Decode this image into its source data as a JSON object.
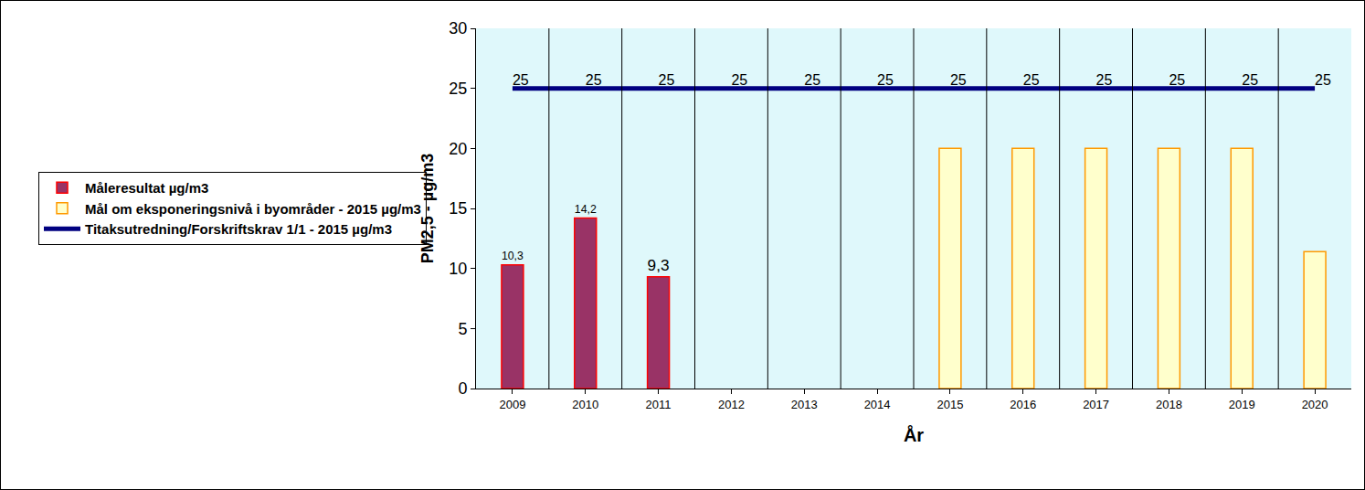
{
  "chart_data": {
    "type": "bar",
    "categories": [
      "2009",
      "2010",
      "2011",
      "2012",
      "2013",
      "2014",
      "2015",
      "2016",
      "2017",
      "2018",
      "2019",
      "2020"
    ],
    "series": [
      {
        "name": "Måleresultat µg/m3",
        "type": "bar",
        "color": "#993366",
        "values": [
          10.3,
          14.2,
          9.3,
          null,
          null,
          null,
          null,
          null,
          null,
          null,
          null,
          null
        ],
        "value_labels": [
          "10,3",
          "14,2",
          "9,3",
          null,
          null,
          null,
          null,
          null,
          null,
          null,
          null,
          null
        ],
        "data_labels": true
      },
      {
        "name": "Mål om eksponeringsnivå i byområder - 2015 µg/m3",
        "type": "bar",
        "color": "#ffffcc",
        "values": [
          null,
          null,
          null,
          null,
          null,
          null,
          20,
          20,
          20,
          20,
          20,
          11.4
        ]
      },
      {
        "name": "Titaksutredning/Forskriftskrav 1/1 - 2015 µg/m3",
        "type": "line",
        "color": "#000080",
        "values": [
          25,
          25,
          25,
          25,
          25,
          25,
          25,
          25,
          25,
          25,
          25,
          25
        ],
        "data_labels": true
      }
    ],
    "x_label": "År",
    "y_label": "PM2,5 - µg/m3",
    "ylim": [
      0,
      30
    ],
    "yticks": [
      0,
      5,
      10,
      15,
      20,
      25,
      30
    ],
    "grid": true,
    "legend": "left"
  }
}
